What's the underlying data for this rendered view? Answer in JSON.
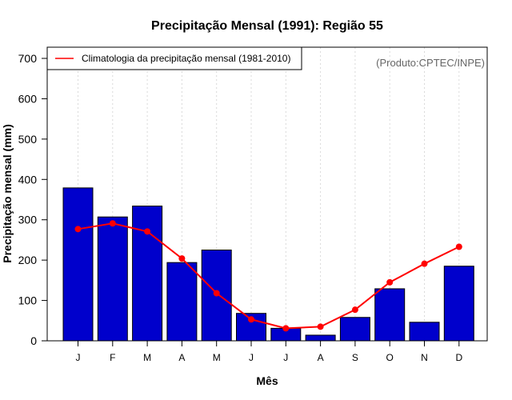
{
  "chart_data": {
    "type": "bar",
    "title": "Precipitação Mensal (1991): Região 55",
    "xlabel": "Mês",
    "ylabel": "Precipitação mensal (mm)",
    "categories": [
      "J",
      "F",
      "M",
      "A",
      "M",
      "J",
      "J",
      "A",
      "S",
      "O",
      "N",
      "D"
    ],
    "ylim": [
      0,
      700
    ],
    "yticks": [
      0,
      100,
      200,
      300,
      400,
      500,
      600,
      700
    ],
    "grid": "vertical-dotted",
    "series": [
      {
        "name": "Precipitação mensal (1991)",
        "type": "bar",
        "color": "#0000CC",
        "values": [
          379,
          307,
          334,
          194,
          225,
          68,
          31,
          14,
          58,
          129,
          46,
          185
        ]
      },
      {
        "name": "Climatologia da precipitação mensal (1981-2010)",
        "type": "line",
        "color": "#FF0000",
        "values": [
          277,
          291,
          271,
          204,
          118,
          53,
          31,
          35,
          77,
          145,
          191,
          233
        ]
      }
    ],
    "legend": {
      "placement": "top-left",
      "entries": [
        "Climatologia da precipitação mensal (1981-2010)"
      ]
    },
    "annotation": "(Produto:CPTEC/INPE)"
  }
}
